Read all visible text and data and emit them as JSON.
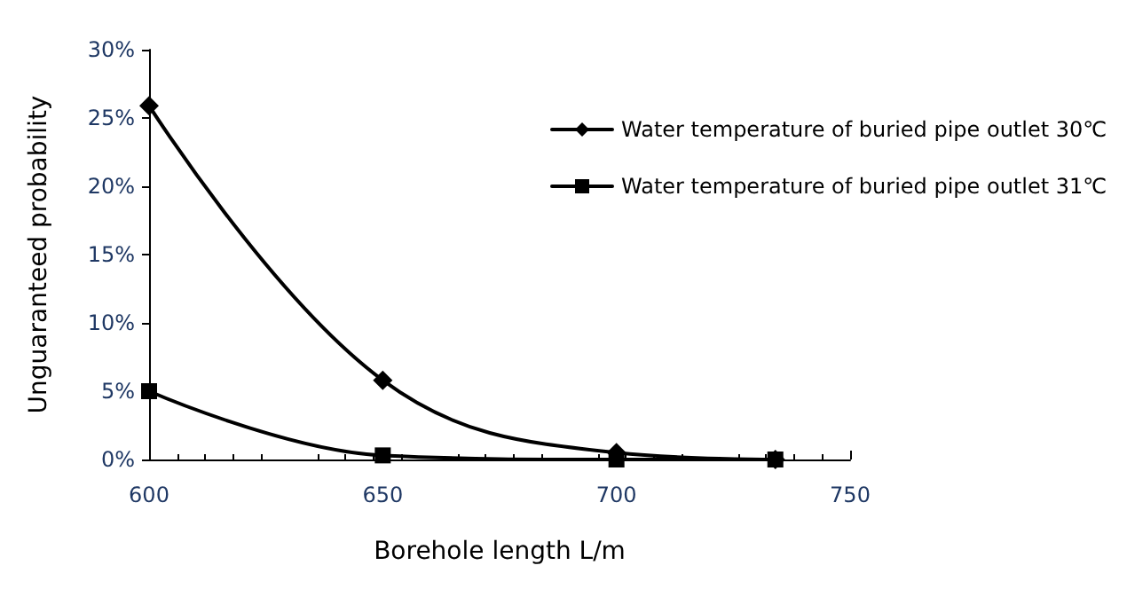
{
  "chart_data": {
    "type": "line",
    "xlabel": "Borehole length L/m",
    "ylabel": "Unguaranteed probability",
    "xlim": [
      600,
      750
    ],
    "xticks": [
      600,
      650,
      700,
      750
    ],
    "ylim": [
      0,
      30
    ],
    "yticks": [
      {
        "value": 0,
        "label": "0%"
      },
      {
        "value": 5,
        "label": "5%"
      },
      {
        "value": 10,
        "label": "10%"
      },
      {
        "value": 15,
        "label": "15%"
      },
      {
        "value": 20,
        "label": "20%"
      },
      {
        "value": 25,
        "label": "25%"
      },
      {
        "value": 30,
        "label": "30%"
      }
    ],
    "x": [
      600,
      650,
      700,
      734
    ],
    "series": [
      {
        "name": "Water temperature of buried pipe outlet 30℃",
        "color": "#000000",
        "marker": "diamond",
        "values": [
          25.9,
          5.8,
          0.5,
          0
        ]
      },
      {
        "name": "Water temperature of buried pipe outlet 31℃",
        "color": "#000000",
        "marker": "square",
        "values": [
          5,
          0.3,
          0,
          0
        ]
      }
    ],
    "grid": false,
    "legend": "right",
    "line_style": "solid"
  }
}
